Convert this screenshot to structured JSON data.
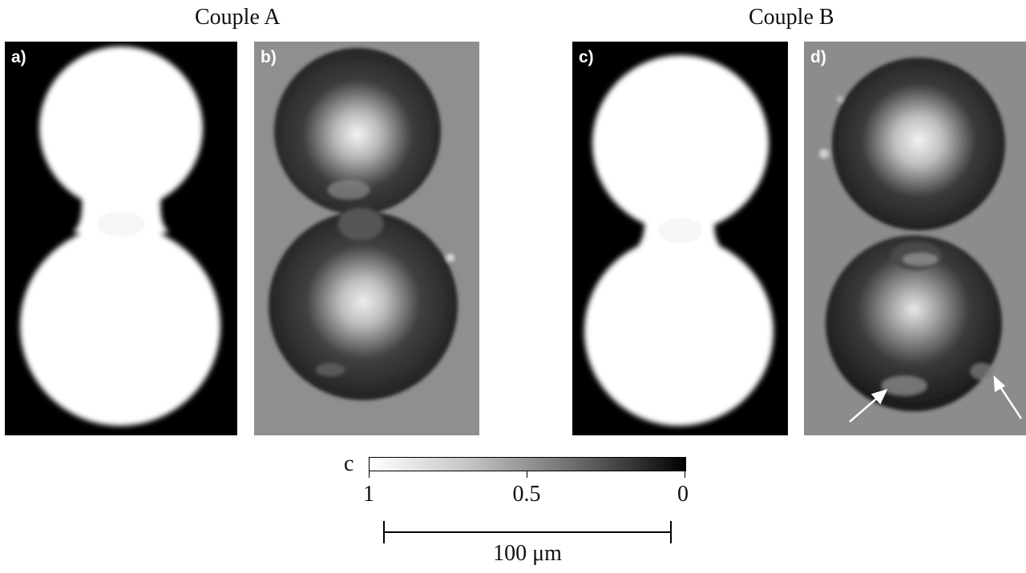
{
  "titles": {
    "couple_a": "Couple A",
    "couple_b": "Couple B"
  },
  "panels": [
    {
      "label": "a)"
    },
    {
      "label": "b)"
    },
    {
      "label": "c)"
    },
    {
      "label": "d)"
    }
  ],
  "colorbar": {
    "symbol": "c",
    "ticks": [
      "1",
      "0.5",
      "0"
    ]
  },
  "scalebar": {
    "label": "100 μm"
  }
}
